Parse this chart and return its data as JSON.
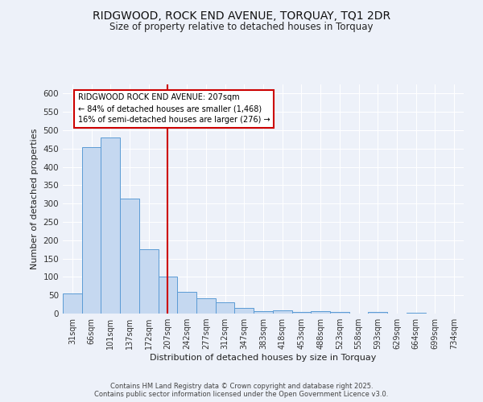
{
  "title_line1": "RIDGWOOD, ROCK END AVENUE, TORQUAY, TQ1 2DR",
  "title_line2": "Size of property relative to detached houses in Torquay",
  "xlabel": "Distribution of detached houses by size in Torquay",
  "ylabel": "Number of detached properties",
  "bar_labels": [
    "31sqm",
    "66sqm",
    "101sqm",
    "137sqm",
    "172sqm",
    "207sqm",
    "242sqm",
    "277sqm",
    "312sqm",
    "347sqm",
    "383sqm",
    "418sqm",
    "453sqm",
    "488sqm",
    "523sqm",
    "558sqm",
    "593sqm",
    "629sqm",
    "664sqm",
    "699sqm",
    "734sqm"
  ],
  "bar_values": [
    55,
    455,
    480,
    313,
    176,
    101,
    59,
    42,
    30,
    15,
    7,
    9,
    4,
    7,
    4,
    0,
    4,
    0,
    2,
    0,
    1
  ],
  "bar_color": "#c5d8f0",
  "bar_edge_color": "#5b9bd5",
  "bg_color": "#edf1f9",
  "grid_color": "#ffffff",
  "vline_x_index": 5,
  "vline_color": "#cc0000",
  "annotation_line1": "RIDGWOOD ROCK END AVENUE: 207sqm",
  "annotation_line2": "← 84% of detached houses are smaller (1,468)",
  "annotation_line3": "16% of semi-detached houses are larger (276) →",
  "annotation_box_edge": "#cc0000",
  "annotation_box_face": "#ffffff",
  "ylim": [
    0,
    625
  ],
  "yticks": [
    0,
    50,
    100,
    150,
    200,
    250,
    300,
    350,
    400,
    450,
    500,
    550,
    600
  ],
  "footnote1": "Contains HM Land Registry data © Crown copyright and database right 2025.",
  "footnote2": "Contains public sector information licensed under the Open Government Licence v3.0."
}
